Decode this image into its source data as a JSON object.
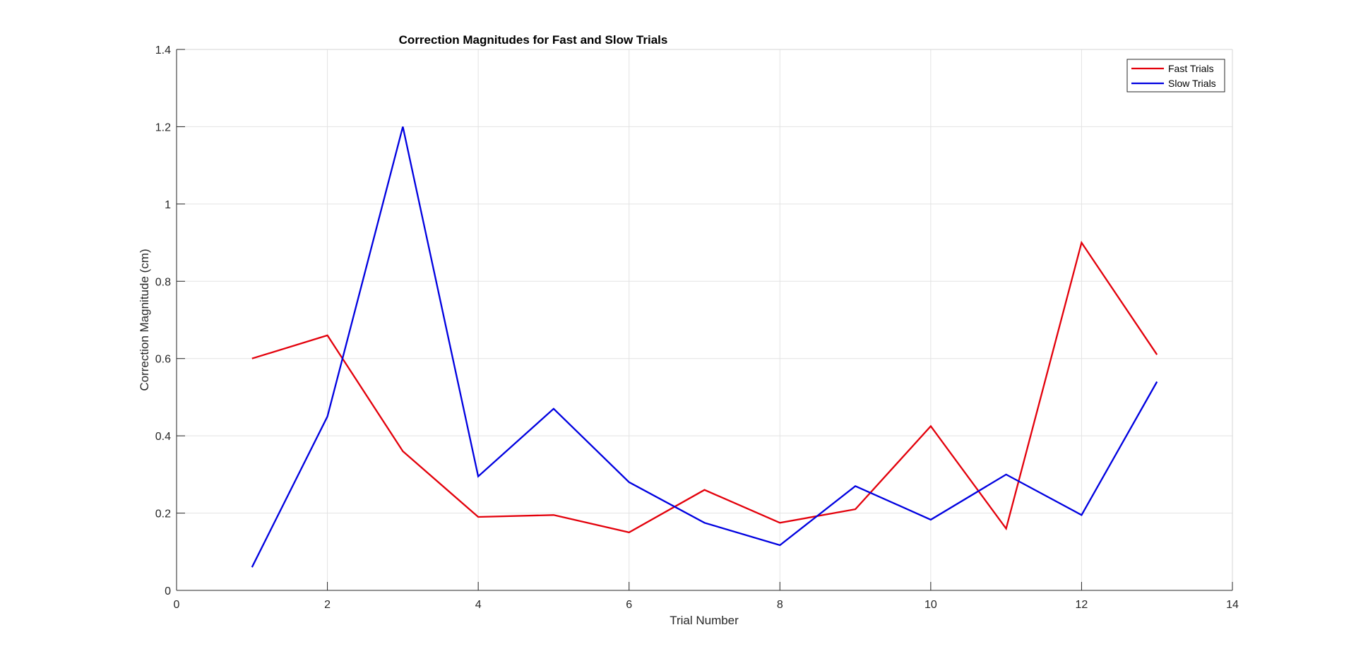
{
  "chart_data": {
    "type": "line",
    "title": "Correction Magnitudes for Fast and Slow Trials",
    "xlabel": "Trial Number",
    "ylabel": "Correction Magnitude (cm)",
    "xlim": [
      0,
      14
    ],
    "ylim": [
      0,
      1.4
    ],
    "xticks": [
      0,
      2,
      4,
      6,
      8,
      10,
      12,
      14
    ],
    "yticks": [
      0,
      0.2,
      0.4,
      0.6,
      0.8,
      1,
      1.2,
      1.4
    ],
    "ytick_labels": [
      "0",
      "0.2",
      "0.4",
      "0.6",
      "0.8",
      "1",
      "1.2",
      "1.4"
    ],
    "grid": true,
    "legend_position": "top-right",
    "x": [
      1,
      2,
      3,
      4,
      5,
      6,
      7,
      8,
      9,
      10,
      11,
      12,
      13
    ],
    "series": [
      {
        "name": "Fast Trials",
        "color": "#e3000b",
        "values": [
          0.6,
          0.66,
          0.36,
          0.19,
          0.195,
          0.15,
          0.26,
          0.175,
          0.21,
          0.425,
          0.16,
          0.9,
          0.61
        ]
      },
      {
        "name": "Slow Trials",
        "color": "#0000e0",
        "values": [
          0.06,
          0.45,
          1.2,
          0.295,
          0.47,
          0.28,
          0.175,
          0.117,
          0.27,
          0.183,
          0.3,
          0.195,
          0.54
        ]
      }
    ]
  }
}
